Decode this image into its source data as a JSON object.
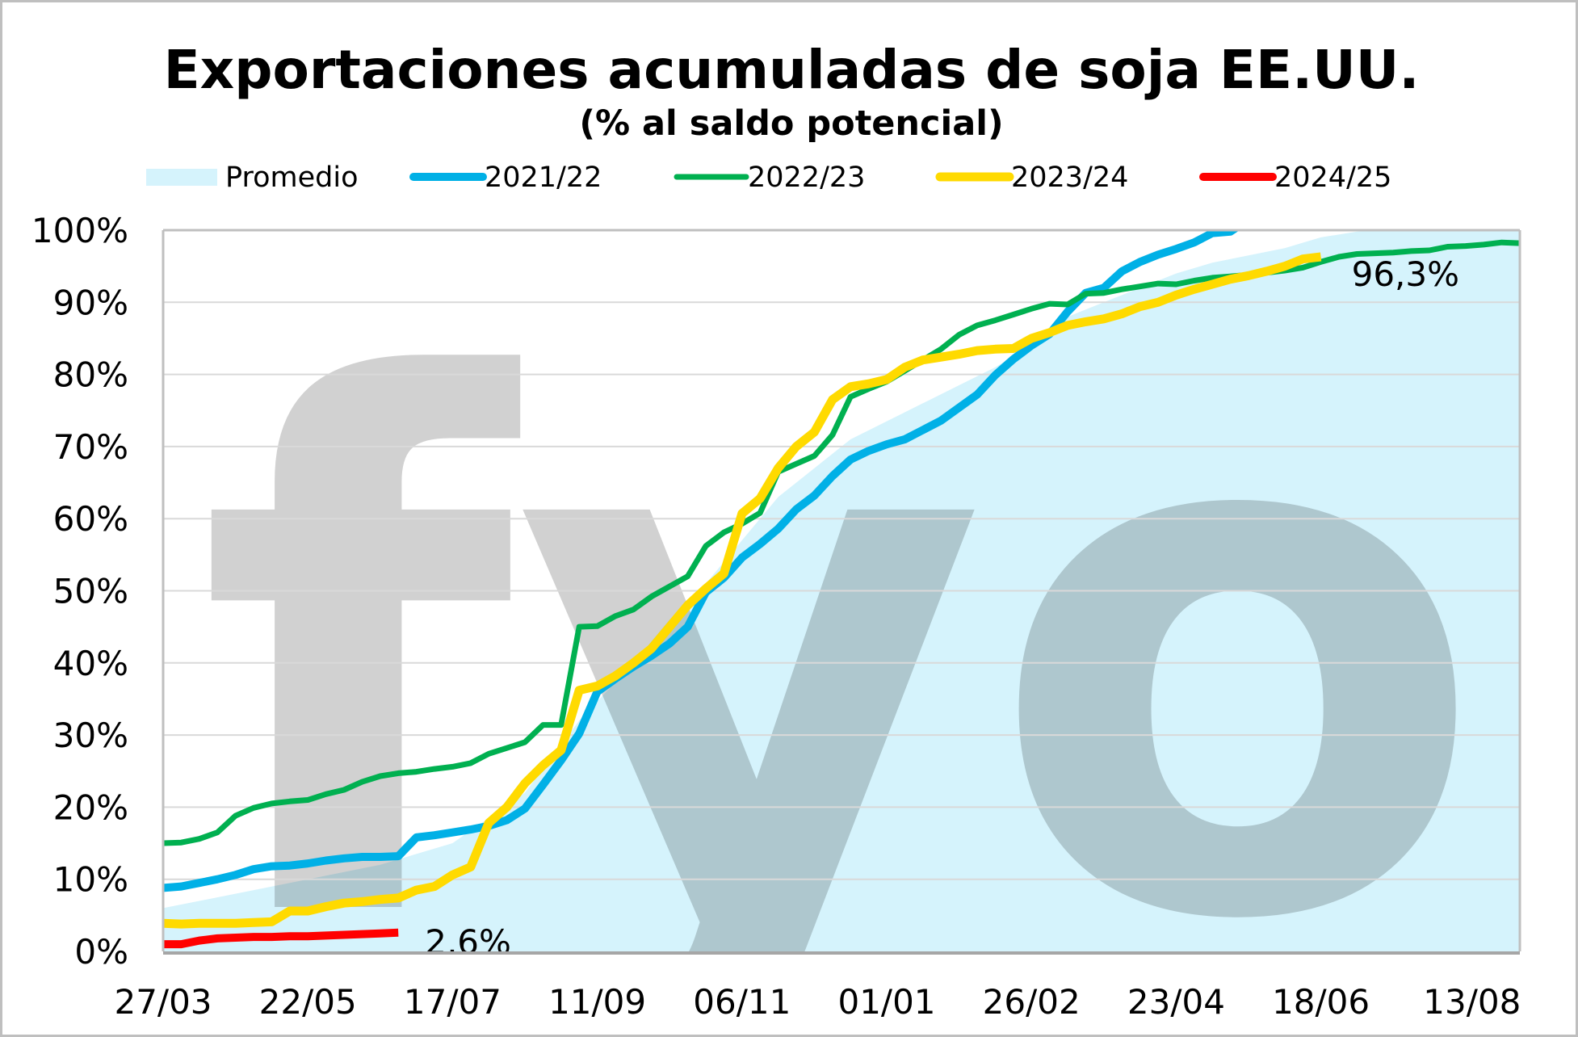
{
  "chart_data": {
    "type": "line",
    "title": "Exportaciones acumuladas de soja EE.UU.",
    "subtitle": "(% al saldo potencial)",
    "xlabel": "",
    "ylabel": "",
    "x_unit": "weeks since 27/03",
    "xlim": [
      0,
      75
    ],
    "ylim": [
      0,
      100
    ],
    "grid": true,
    "legend_position": "top",
    "watermark": "fyo",
    "x_tick_weeks": [
      0,
      8,
      16,
      24,
      32,
      40,
      48,
      56,
      64,
      72
    ],
    "x_tick_labels": [
      "27/03",
      "22/05",
      "17/07",
      "11/09",
      "06/11",
      "01/01",
      "26/02",
      "23/04",
      "18/06",
      "13/08"
    ],
    "y_ticks": [
      0,
      10,
      20,
      30,
      40,
      50,
      60,
      70,
      80,
      90,
      100
    ],
    "y_tick_labels": [
      "0%",
      "10%",
      "20%",
      "30%",
      "40%",
      "50%",
      "60%",
      "70%",
      "80%",
      "90%",
      "100%"
    ],
    "series": [
      {
        "name": "Promedio",
        "kind": "area",
        "color": "#D5F3FC",
        "x": [
          0,
          4,
          8,
          12,
          16,
          20,
          23,
          26,
          28,
          30,
          32,
          34,
          36,
          38,
          40,
          42,
          44,
          46,
          48,
          50,
          52,
          54,
          56,
          58,
          60,
          62,
          64,
          66,
          68,
          75
        ],
        "values": [
          6,
          8,
          10,
          12,
          15,
          22,
          32,
          40,
          46,
          51,
          57,
          63,
          67,
          71,
          73.5,
          76,
          78.5,
          81,
          84,
          88,
          90,
          92,
          94,
          95.5,
          96.5,
          97.5,
          99,
          99.8,
          100,
          100
        ]
      },
      {
        "name": "2021/22",
        "kind": "line",
        "color": "#00B0E6",
        "values": [
          8.8,
          9,
          9.5,
          10,
          10.6,
          11.4,
          11.8,
          11.9,
          12.2,
          12.6,
          12.9,
          13.1,
          13.1,
          13.2,
          15.8,
          16.1,
          16.5,
          16.9,
          17.4,
          18.2,
          19.8,
          23.1,
          26.5,
          30.2,
          36,
          37.8,
          39.5,
          41,
          42.7,
          45,
          49.8,
          51.8,
          54.6,
          56.5,
          58.6,
          61.3,
          63.2,
          65.9,
          68.2,
          69.4,
          70.3,
          71,
          72.3,
          73.6,
          75.4,
          77.2,
          79.9,
          82.1,
          84,
          85.6,
          88.7,
          91.3,
          92,
          94.3,
          95.6,
          96.6,
          97.4,
          98.3,
          99.6,
          99.8,
          101.5
        ]
      },
      {
        "name": "2022/23",
        "kind": "line",
        "color": "#00B050",
        "values": [
          15,
          15.1,
          15.6,
          16.5,
          18.8,
          19.9,
          20.5,
          20.8,
          21,
          21.8,
          22.4,
          23.5,
          24.3,
          24.7,
          24.9,
          25.3,
          25.6,
          26.1,
          27.4,
          28.2,
          29,
          31.4,
          31.4,
          45,
          45.1,
          46.5,
          47.4,
          49.2,
          50.6,
          52,
          56.2,
          58.1,
          59.3,
          60.8,
          66.5,
          67.6,
          68.7,
          71.6,
          76.9,
          78,
          79,
          80.5,
          82,
          83.5,
          85.5,
          86.8,
          87.5,
          88.3,
          89.1,
          89.8,
          89.7,
          91.2,
          91.3,
          91.8,
          92.2,
          92.6,
          92.5,
          93,
          93.4,
          93.6,
          93.8,
          94.1,
          94.4,
          94.8,
          95.6,
          96.3,
          96.7,
          96.8,
          96.9,
          97.1,
          97.2,
          97.7,
          97.8,
          98,
          98.3,
          98.2
        ]
      },
      {
        "name": "2023/24",
        "kind": "line",
        "color": "#FFDA00",
        "values": [
          3.9,
          3.8,
          3.9,
          3.9,
          3.9,
          4,
          4.1,
          5.6,
          5.6,
          6.2,
          6.7,
          6.9,
          7.2,
          7.4,
          8.5,
          9,
          10.6,
          11.7,
          17.8,
          20,
          23.3,
          25.8,
          27.9,
          36.2,
          36.8,
          38.2,
          40,
          42,
          45,
          48,
          50.3,
          52.4,
          60.7,
          62.8,
          67,
          70,
          72,
          76.5,
          78.3,
          78.7,
          79.3,
          81,
          82,
          82.4,
          82.8,
          83.3,
          83.5,
          83.6,
          85,
          85.8,
          86.8,
          87.3,
          87.7,
          88.4,
          89.4,
          90,
          91,
          91.8,
          92.5,
          93.2,
          93.7,
          94.3,
          95,
          96,
          96.3
        ],
        "end_label": "96,3%"
      },
      {
        "name": "2024/25",
        "kind": "line",
        "color": "#FF0000",
        "values": [
          1,
          1,
          1.5,
          1.8,
          1.9,
          2,
          2,
          2.1,
          2.1,
          2.2,
          2.3,
          2.4,
          2.5,
          2.6
        ],
        "end_label": "2,6%"
      }
    ]
  }
}
